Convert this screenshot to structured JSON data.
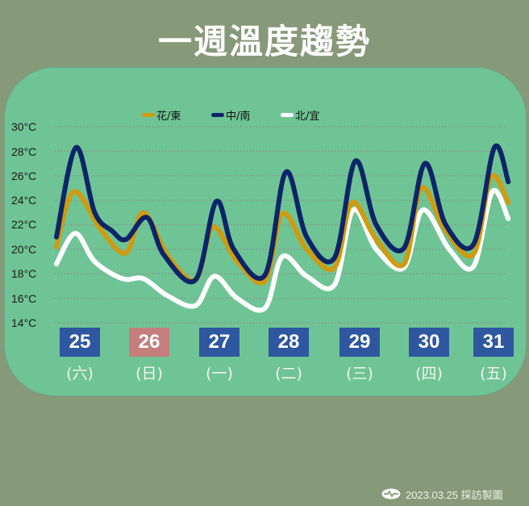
{
  "header": {
    "title": "一週溫度趨勢"
  },
  "colors": {
    "background": "#869978",
    "card": "#6fc495",
    "hualien_taitung": "#cf9b10",
    "central_south": "#0c2468",
    "north_yilan": "#ffffff",
    "date_box_weekday": "#2e579f",
    "date_box_holiday": "#c47f7d",
    "gridline": "#9a7f8a"
  },
  "legend": [
    {
      "label": "花/東",
      "color": "#cf9b10",
      "icon": "line-swatch-gold"
    },
    {
      "label": "中/南",
      "color": "#0c2468",
      "icon": "line-swatch-navy"
    },
    {
      "label": "北/宜",
      "color": "#ffffff",
      "icon": "line-swatch-white"
    }
  ],
  "y_axis": {
    "ticks": [
      "30°C",
      "28°C",
      "26°C",
      "24°C",
      "22°C",
      "20°C",
      "18°C",
      "16°C",
      "14°C"
    ]
  },
  "days": [
    {
      "date": "25",
      "weekday": "(六)",
      "holiday": false
    },
    {
      "date": "26",
      "weekday": "(日)",
      "holiday": true
    },
    {
      "date": "27",
      "weekday": "(一)",
      "holiday": false
    },
    {
      "date": "28",
      "weekday": "(二)",
      "holiday": false
    },
    {
      "date": "29",
      "weekday": "(三)",
      "holiday": false
    },
    {
      "date": "30",
      "weekday": "(四)",
      "holiday": false
    },
    {
      "date": "31",
      "weekday": "(五)",
      "holiday": false
    }
  ],
  "footer": {
    "text": "2023.03.25 採訪製圖",
    "icon": "cloud-logo-icon"
  },
  "chart_data": {
    "type": "line",
    "title": "一週溫度趨勢",
    "xlabel": "",
    "ylabel": "°C",
    "ylim": [
      14,
      30
    ],
    "grid": true,
    "legend_position": "top",
    "categories": [
      "25(六)",
      "26(日)",
      "27(一)",
      "28(二)",
      "29(三)",
      "30(四)",
      "31(五)"
    ],
    "x_positions_note": "x is fractional day index (0 = start of 25th, 7 = end of 31st)",
    "series": [
      {
        "name": "花/東",
        "color": "#cf9b10",
        "points": [
          [
            0.0,
            20.2
          ],
          [
            0.25,
            24.7
          ],
          [
            0.65,
            21.5
          ],
          [
            1.0,
            19.7
          ],
          [
            1.25,
            23.0
          ],
          [
            1.6,
            19.5
          ],
          [
            2.0,
            17.5
          ],
          [
            2.25,
            21.8
          ],
          [
            2.6,
            19.0
          ],
          [
            3.0,
            17.4
          ],
          [
            3.25,
            22.9
          ],
          [
            3.6,
            20.0
          ],
          [
            4.0,
            18.5
          ],
          [
            4.25,
            23.8
          ],
          [
            4.6,
            20.8
          ],
          [
            5.0,
            18.8
          ],
          [
            5.25,
            25.0
          ],
          [
            5.6,
            21.5
          ],
          [
            6.0,
            19.6
          ],
          [
            6.25,
            25.9
          ],
          [
            6.5,
            23.8
          ]
        ]
      },
      {
        "name": "中/南",
        "color": "#0c2468",
        "points": [
          [
            0.0,
            21.0
          ],
          [
            0.28,
            28.3
          ],
          [
            0.55,
            23.0
          ],
          [
            0.8,
            21.5
          ],
          [
            1.0,
            20.8
          ],
          [
            1.3,
            22.6
          ],
          [
            1.55,
            19.5
          ],
          [
            2.0,
            17.5
          ],
          [
            2.3,
            23.9
          ],
          [
            2.55,
            20.0
          ],
          [
            3.0,
            17.9
          ],
          [
            3.3,
            26.3
          ],
          [
            3.6,
            21.0
          ],
          [
            4.0,
            19.3
          ],
          [
            4.3,
            27.2
          ],
          [
            4.6,
            22.0
          ],
          [
            5.0,
            20.1
          ],
          [
            5.3,
            27.0
          ],
          [
            5.6,
            22.0
          ],
          [
            6.0,
            20.4
          ],
          [
            6.3,
            28.3
          ],
          [
            6.5,
            25.5
          ]
        ]
      },
      {
        "name": "北/宜",
        "color": "#ffffff",
        "points": [
          [
            0.0,
            18.8
          ],
          [
            0.27,
            21.3
          ],
          [
            0.55,
            19.0
          ],
          [
            0.95,
            17.6
          ],
          [
            1.25,
            17.6
          ],
          [
            1.6,
            16.2
          ],
          [
            2.0,
            15.4
          ],
          [
            2.27,
            17.8
          ],
          [
            2.6,
            16.0
          ],
          [
            3.0,
            15.2
          ],
          [
            3.25,
            19.4
          ],
          [
            3.6,
            17.8
          ],
          [
            4.0,
            17.1
          ],
          [
            4.27,
            23.2
          ],
          [
            4.6,
            20.0
          ],
          [
            5.0,
            18.5
          ],
          [
            5.27,
            23.2
          ],
          [
            5.65,
            20.0
          ],
          [
            6.0,
            18.6
          ],
          [
            6.27,
            24.7
          ],
          [
            6.5,
            22.5
          ]
        ]
      }
    ],
    "summary": {
      "花/東": {
        "max": [
          24.7,
          23.0,
          21.8,
          22.9,
          23.8,
          25.0,
          25.9
        ],
        "min": [
          20.2,
          19.7,
          17.5,
          17.4,
          18.5,
          18.8,
          19.6
        ]
      },
      "中/南": {
        "max": [
          28.3,
          22.6,
          23.9,
          26.3,
          27.2,
          27.0,
          28.3
        ],
        "min": [
          21.0,
          20.8,
          17.5,
          17.9,
          19.3,
          20.1,
          20.4
        ]
      },
      "北/宜": {
        "max": [
          21.3,
          17.6,
          17.8,
          19.4,
          23.2,
          23.2,
          24.7
        ],
        "min": [
          18.8,
          17.6,
          15.4,
          15.2,
          17.1,
          18.5,
          18.6
        ]
      }
    }
  }
}
